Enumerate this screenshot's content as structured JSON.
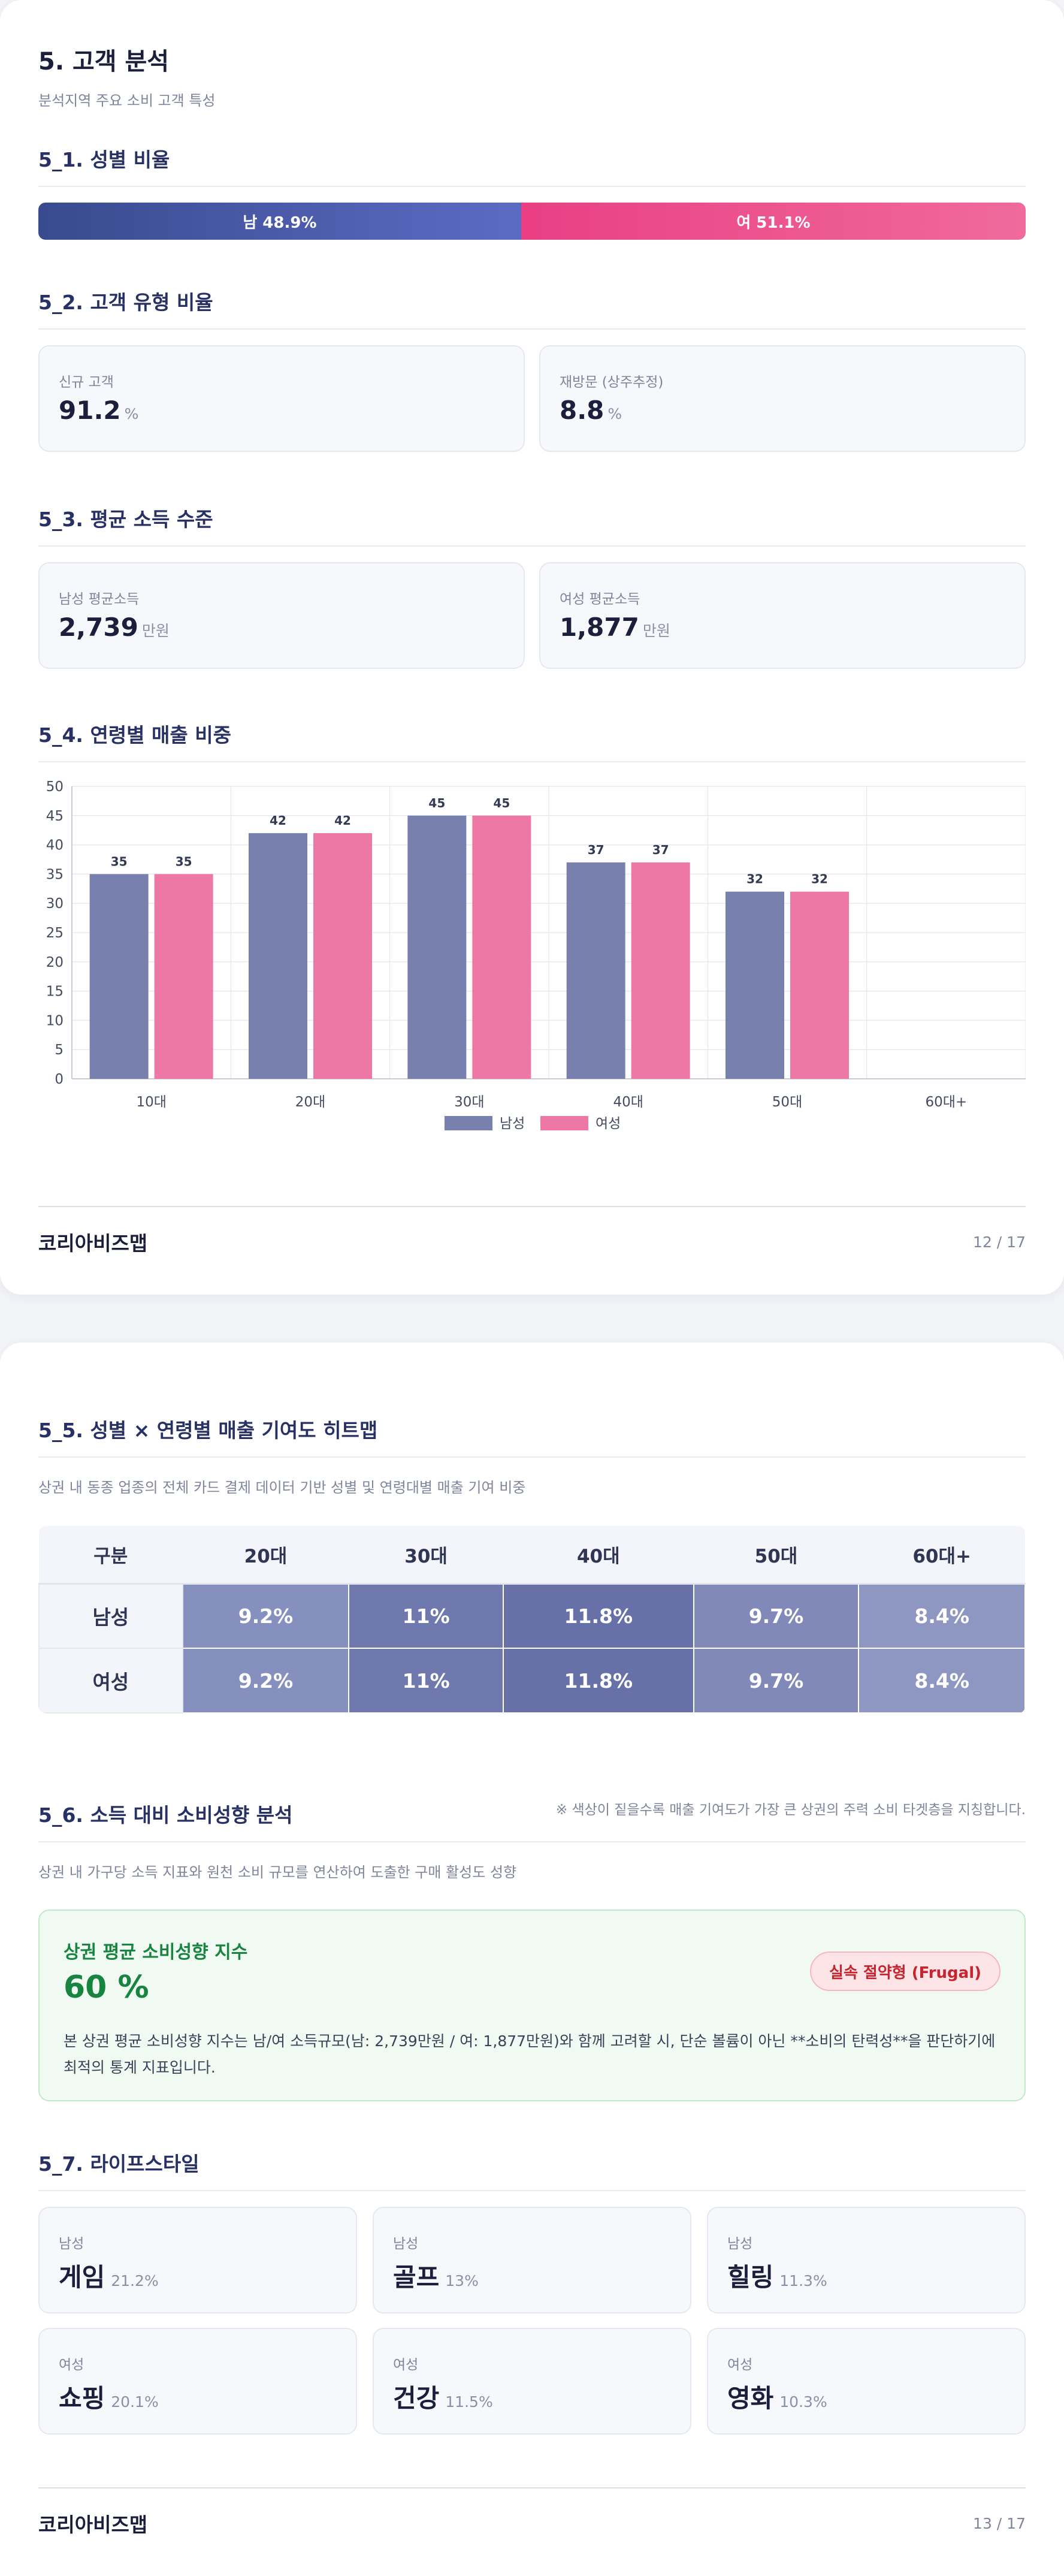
{
  "page1": {
    "title": "5. 고객 분석",
    "subtitle": "분석지역 주요 소비 고객 특성",
    "gender": {
      "heading": "5_1. 성별 비율",
      "male_label": "남 48.9%",
      "female_label": "여 51.1%",
      "male_pct": 48.9,
      "female_pct": 51.1,
      "male_color": "#4a58a8",
      "female_color": "#ec4a8b"
    },
    "customer_type": {
      "heading": "5_2. 고객 유형 비율",
      "cards": [
        {
          "label": "신규 고객",
          "value": "91.2",
          "unit": "%"
        },
        {
          "label": "재방문 (상주추정)",
          "value": "8.8",
          "unit": "%"
        }
      ]
    },
    "income": {
      "heading": "5_3. 평균 소득 수준",
      "cards": [
        {
          "label": "남성 평균소득",
          "value": "2,739",
          "unit": "만원"
        },
        {
          "label": "여성 평균소득",
          "value": "1,877",
          "unit": "만원"
        }
      ]
    },
    "age_sales": {
      "heading": "5_4. 연령별 매출 비중"
    },
    "footer": {
      "brand": "코리아비즈맵",
      "page": "12 / 17"
    }
  },
  "chart_data": {
    "type": "bar",
    "categories": [
      "10대",
      "20대",
      "30대",
      "40대",
      "50대",
      "60대+"
    ],
    "series": [
      {
        "name": "남성",
        "values": [
          35,
          42,
          45,
          37,
          32,
          null
        ],
        "color": "#7880ad"
      },
      {
        "name": "여성",
        "values": [
          35,
          42,
          45,
          37,
          32,
          null
        ],
        "color": "#ed78a6"
      }
    ],
    "ylim": [
      0,
      50
    ],
    "yticks": [
      0,
      5,
      10,
      15,
      20,
      25,
      30,
      35,
      40,
      45,
      50
    ],
    "grid": true,
    "legend": "bottom-center",
    "data_labels": true
  },
  "page2": {
    "heatmap": {
      "heading": "5_5. 성별 × 연령별 매출 기여도 히트맵",
      "description": "상권 내 동종 업종의 전체 카드 결제 데이터 기반 성별 및 연령대별 매출 기여 비중",
      "columns": [
        "구분",
        "20대",
        "30대",
        "40대",
        "50대",
        "60대+"
      ],
      "rows": [
        {
          "label": "남성",
          "cells": [
            "9.2%",
            "11%",
            "11.8%",
            "9.7%",
            "8.4%"
          ]
        },
        {
          "label": "여성",
          "cells": [
            "9.2%",
            "11%",
            "11.8%",
            "9.7%",
            "8.4%"
          ]
        }
      ],
      "note": "※ 색상이 짙을수록 매출 기여도가 가장 큰 상권의 주력 소비 타겟층을 지칭합니다."
    },
    "propensity": {
      "heading": "5_6. 소득 대비 소비성향 분석",
      "description": "상권 내 가구당 소득 지표와 원천 소비 규모를 연산하여 도출한 구매 활성도 성향",
      "box_title": "상권 평균 소비성향 지수",
      "value": "60 %",
      "badge": "실속 절약형 (Frugal)",
      "text": "본 상권 평균 소비성향 지수는 남/여 소득규모(남: 2,739만원 / 여: 1,877만원)와 함께 고려할 시, 단순 볼륨이 아닌 **소비의 탄력성**을 판단하기에 최적의 통계 지표입니다."
    },
    "lifestyle": {
      "heading": "5_7. 라이프스타일",
      "items": [
        {
          "gender": "남성",
          "name": "게임",
          "pct": "21.2%"
        },
        {
          "gender": "남성",
          "name": "골프",
          "pct": "13%"
        },
        {
          "gender": "남성",
          "name": "힐링",
          "pct": "11.3%"
        },
        {
          "gender": "여성",
          "name": "쇼핑",
          "pct": "20.1%"
        },
        {
          "gender": "여성",
          "name": "건강",
          "pct": "11.5%"
        },
        {
          "gender": "여성",
          "name": "영화",
          "pct": "10.3%"
        }
      ]
    },
    "footer": {
      "brand": "코리아비즈맵",
      "page": "13 / 17"
    }
  }
}
